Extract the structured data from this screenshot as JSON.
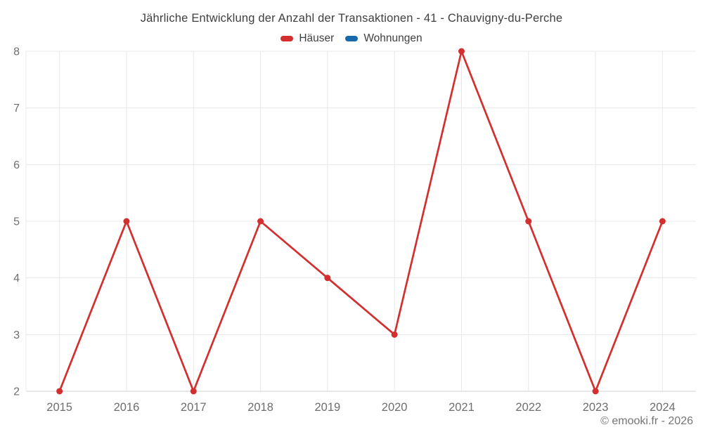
{
  "chart": {
    "title": "Jährliche Entwicklung der Anzahl der Transaktionen - 41 - Chauvigny-du-Perche",
    "watermark": "© emooki.fr - 2026"
  },
  "legend": {
    "items": [
      {
        "label": "Häuser",
        "color": "#d32f2f"
      },
      {
        "label": "Wohnungen",
        "color": "#1769aa"
      }
    ]
  },
  "chart_data": {
    "type": "line",
    "title": "Jährliche Entwicklung der Anzahl der Transaktionen - 41 - Chauvigny-du-Perche",
    "categories": [
      "2015",
      "2016",
      "2017",
      "2018",
      "2019",
      "2020",
      "2021",
      "2022",
      "2023",
      "2024"
    ],
    "series": [
      {
        "name": "Häuser",
        "color": "#d32f2f",
        "values": [
          2,
          5,
          2,
          5,
          4,
          3,
          8,
          5,
          2,
          5
        ]
      },
      {
        "name": "Wohnungen",
        "color": "#1769aa",
        "values": []
      }
    ],
    "xlabel": "",
    "ylabel": "",
    "ylim": [
      2,
      8
    ],
    "yticks": [
      2,
      3,
      4,
      5,
      6,
      7,
      8
    ],
    "grid": true,
    "legend_position": "top"
  },
  "colors": {
    "grid": "#e8e8e8",
    "axis_line": "#d2d2d2",
    "tick_label": "#6e6e6e",
    "title_text": "#3f3f3f"
  }
}
